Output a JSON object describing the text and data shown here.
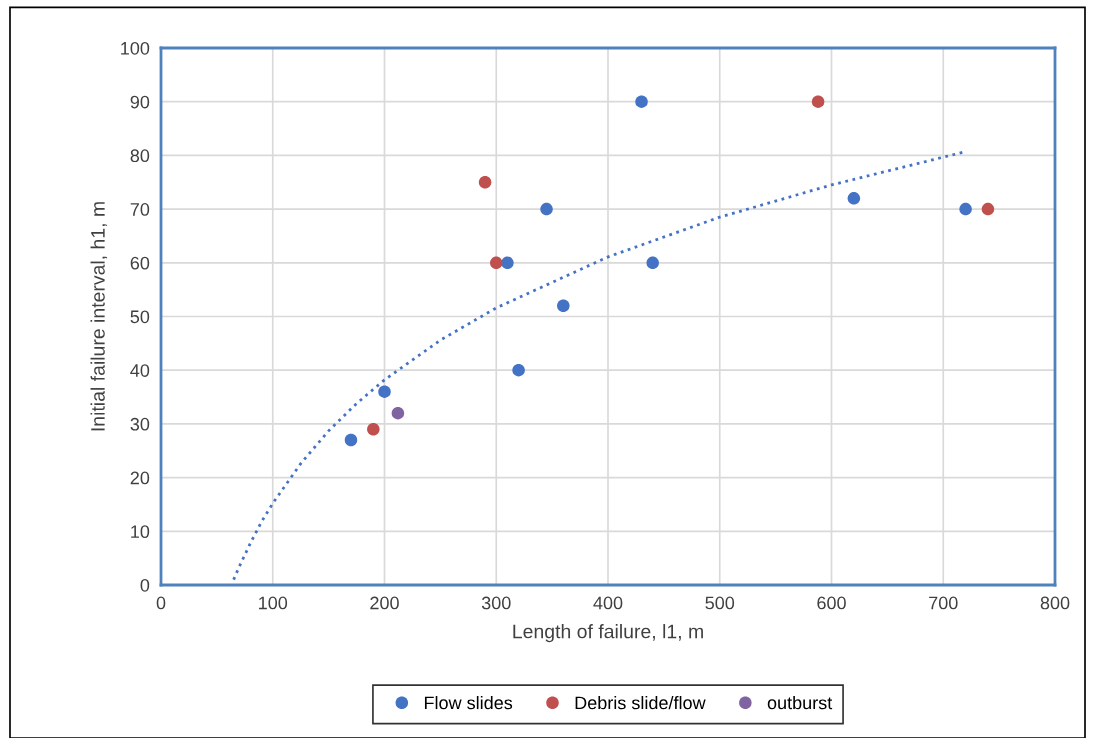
{
  "chart_data": {
    "type": "scatter",
    "xlabel": "Length of failure, l1, m",
    "ylabel": "Initial failure interval, h1, m",
    "xlim": [
      0,
      800
    ],
    "xticks": [
      0,
      100,
      200,
      300,
      400,
      500,
      600,
      700,
      800
    ],
    "ylim": [
      0,
      100
    ],
    "yticks": [
      0,
      10,
      20,
      30,
      40,
      50,
      60,
      70,
      80,
      90,
      100
    ],
    "grid": true,
    "legend": "bottom",
    "marker": "circle",
    "series": [
      {
        "name": "Flow slides",
        "color": "#4472c4",
        "x": [
          170,
          200,
          310,
          320,
          345,
          360,
          430,
          440,
          620,
          720
        ],
        "values": [
          27,
          36,
          60,
          40,
          70,
          52,
          90,
          60,
          72,
          70
        ]
      },
      {
        "name": "Debris slide/flow",
        "color": "#c0504d",
        "x": [
          190,
          290,
          300,
          588,
          740
        ],
        "values": [
          29,
          75,
          60,
          90,
          70
        ]
      },
      {
        "name": "outburst",
        "color": "#8064a2",
        "x": [
          212
        ],
        "values": [
          32
        ]
      },
      {
        "type": "line",
        "color": "#4472c4",
        "line_style": "dotted",
        "marker": "none",
        "x": [
          65,
          70,
          80,
          90,
          100,
          125,
          150,
          175,
          200,
          250,
          300,
          400,
          500,
          600,
          720
        ],
        "values": [
          1,
          3.4,
          7.8,
          11.8,
          15.2,
          22.6,
          28.7,
          33.8,
          38.2,
          45.6,
          51.6,
          61.1,
          68.5,
          74.5,
          80.7
        ]
      }
    ]
  }
}
